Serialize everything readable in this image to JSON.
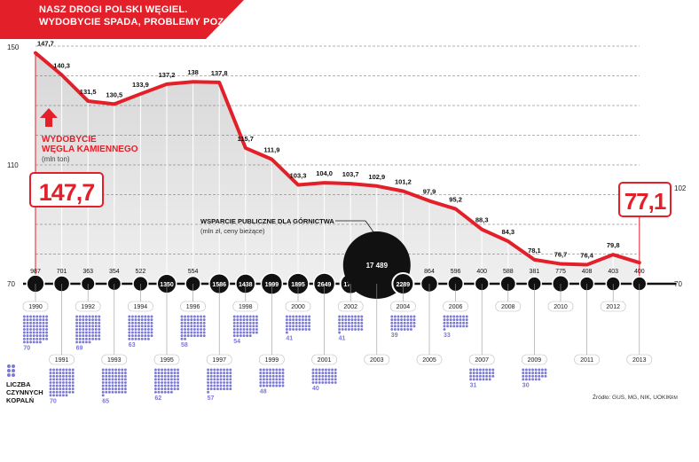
{
  "header": {
    "line1": "NASZ DROGI POLSKI WĘGIEL.",
    "line2": "WYDOBYCIE SPADA, PROBLEMY POZOSTAJĄ"
  },
  "colors": {
    "accent": "#e3202a",
    "dark": "#111111",
    "dots": "#7b79d6",
    "grid": "#666666",
    "area": "#dcdcdc"
  },
  "labels": {
    "axis_150": "150",
    "axis_110": "110",
    "axis_70": "70",
    "axis_102": "102",
    "axis_70_right": "70",
    "mining_title_1": "WYDOBYCIE",
    "mining_title_2": "WĘGLA KAMIENNEGO",
    "mining_unit": "(mln ton)",
    "start_value": "147,7",
    "end_value": "77,1",
    "subsidy_title": "WSPARCIE PUBLICZNE DLA GÓRNICTWA",
    "subsidy_unit": "(mln zł, ceny bieżące)",
    "mines_1": "LICZBA",
    "mines_2": "CZYNNYCH",
    "mines_3": "KOPALŃ",
    "source": "Źródło: GUS, MG, NIK, UOKIK",
    "credit": "RM"
  },
  "chart_data": {
    "type": "line",
    "years": [
      "1990",
      "1991",
      "1992",
      "1993",
      "1994",
      "1995",
      "1996",
      "1997",
      "1998",
      "1999",
      "2000",
      "2001",
      "2002",
      "2003",
      "2004",
      "2005",
      "2006",
      "2007",
      "2008",
      "2009",
      "2010",
      "2011",
      "2012",
      "2013"
    ],
    "production": [
      147.7,
      140.3,
      131.5,
      130.5,
      133.9,
      137.2,
      138,
      137.8,
      115.7,
      111.9,
      103.3,
      104.0,
      103.7,
      102.9,
      101.2,
      97.9,
      95.2,
      88.3,
      84.3,
      78.1,
      76.7,
      76.4,
      79.8,
      77.1
    ],
    "production_labels": [
      "147,7",
      "140,3",
      "131,5",
      "130,5",
      "133,9",
      "137,2",
      "138",
      "137,8",
      "115,7",
      "111,9",
      "103,3",
      "104,0",
      "103,7",
      "102,9",
      "101,2",
      "97,9",
      "95,2",
      "88,3",
      "84,3",
      "78,1",
      "76,7",
      "76,4",
      "79,8",
      ""
    ],
    "subsidies": [
      987,
      701,
      363,
      354,
      522,
      1350,
      554,
      1586,
      1438,
      1999,
      1895,
      2649,
      1713,
      17489,
      2289,
      864,
      596,
      400,
      588,
      381,
      775,
      408,
      403,
      400
    ],
    "subsidy_labels": [
      "987",
      "701",
      "363",
      "354",
      "522",
      "1350",
      "554",
      "1586",
      "1438",
      "1999",
      "1895",
      "2649",
      "1713",
      "17 489",
      "2289",
      "864",
      "596",
      "400",
      "588",
      "381",
      "775",
      "408",
      "403",
      "400"
    ],
    "mines": [
      70,
      70,
      69,
      65,
      63,
      62,
      58,
      57,
      54,
      48,
      41,
      40,
      41,
      null,
      39,
      null,
      33,
      31,
      null,
      30,
      null,
      null,
      null,
      null
    ],
    "mines_labels": [
      "70",
      "70",
      "69",
      "65",
      "63",
      "62",
      "58",
      "57",
      "54",
      "48",
      "41",
      "40",
      "41",
      "",
      "39",
      "",
      "33",
      "31",
      "",
      "30",
      "",
      "",
      "",
      ""
    ],
    "yaxis_ticks": [
      150,
      110,
      70
    ],
    "ylim": [
      70,
      150
    ]
  }
}
